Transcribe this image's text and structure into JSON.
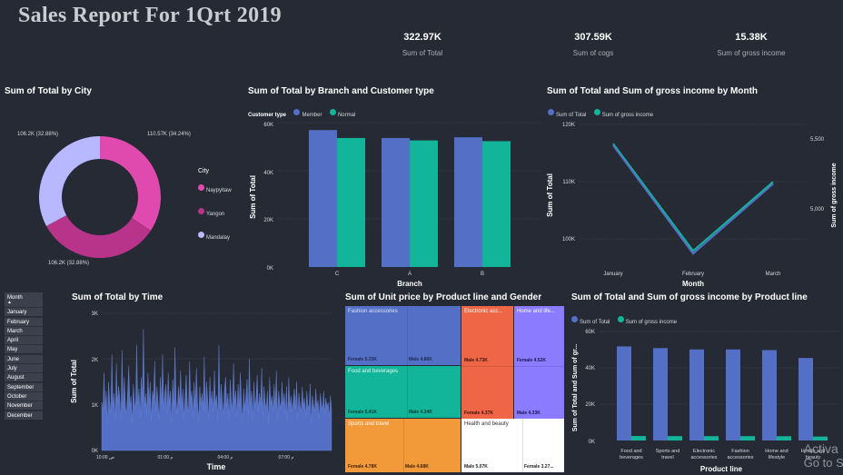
{
  "report": {
    "title": "Sales Report For 1Qrt  2019"
  },
  "kpis": [
    {
      "value": "322.97K",
      "label": "Sum of Total"
    },
    {
      "value": "307.59K",
      "label": "Sum of cogs"
    },
    {
      "value": "15.38K",
      "label": "Sum of gross income"
    }
  ],
  "colors": {
    "blue": "#5470C6",
    "teal": "#12B59A",
    "magenta": "#E04AAE",
    "plum": "#B8338A",
    "lavender": "#B7B8FF",
    "orange": "#F29A3A",
    "red": "#EE6646",
    "purple": "#8A7BFF"
  },
  "donut": {
    "title": "Sum of Total by City",
    "legend_title": "City",
    "slices": [
      {
        "name": "Naypyitaw",
        "value": 110.57,
        "label": "110.57K (34.24%)",
        "color": "#E04AAE"
      },
      {
        "name": "Yangon",
        "value": 106.2,
        "label": "106.2K (32.88%)",
        "color": "#B8338A"
      },
      {
        "name": "Mandalay",
        "value": 106.2,
        "label": "106.2K (32.88%)",
        "color": "#B7B8FF"
      }
    ]
  },
  "branch": {
    "title": "Sum of Total by Branch and Customer type",
    "legend_title": "Customer type",
    "series_names": [
      "Member",
      "Normal"
    ],
    "y_ticks": [
      "60K",
      "40K",
      "20K",
      "0K"
    ],
    "ylabel": "Sum of Total",
    "xlabel": "Branch",
    "categories": [
      "C",
      "A",
      "B"
    ]
  },
  "month": {
    "title": "Sum of Total and Sum of gross income by Month",
    "series_names": [
      "Sum of Total",
      "Sum of gross income"
    ],
    "y_ticks": [
      "120K",
      "110K",
      "100K"
    ],
    "y2_ticks": [
      "5,500",
      "5,000"
    ],
    "ylabel": "Sum of Total",
    "y2label": "Sum of gross income",
    "xlabel": "Month",
    "categories": [
      "January",
      "February",
      "March"
    ]
  },
  "slicer": {
    "header": "Month",
    "items": [
      "January",
      "February",
      "March",
      "April",
      "May",
      "June",
      "July",
      "August",
      "September",
      "October",
      "November",
      "December"
    ]
  },
  "time": {
    "title": "Sum of Total by Time",
    "y_ticks": [
      "3K",
      "2K",
      "1K",
      "0K"
    ],
    "x_ticks": [
      "10:00 ص",
      "01:00 م",
      "04:00 م",
      "07:00 م"
    ],
    "ylabel": "Sum of Total",
    "xlabel": "Time"
  },
  "treemap": {
    "title": "Sum of Unit price by Product line and Gender",
    "tiles": [
      {
        "name": "Fashion accessories",
        "female": "Female 5.33K",
        "male": "Male 4.86K",
        "color": "#5470C6"
      },
      {
        "name": "Electronic acc...",
        "female": "Male 4.73K",
        "male": "Female 4.37K",
        "color": "#EE6646"
      },
      {
        "name": "Home and life...",
        "female": "Female 4.52K",
        "male": "Male 4.33K",
        "color": "#8A7BFF"
      },
      {
        "name": "Food and beverages",
        "female": "Female 5.41K",
        "male": "Male 4.34K",
        "color": "#12B59A"
      },
      {
        "name": "Sports and travel",
        "female": "Female 4.78K",
        "male": "Male 4.68K",
        "color": "#F29A3A"
      },
      {
        "name": "Health and beauty",
        "female": "Male 5.07K",
        "male": "Female 3.27...",
        "color": "#FFFFFF"
      }
    ]
  },
  "product": {
    "title": "Sum of Total and Sum of gross income by Product line",
    "series_names": [
      "Sum of Total",
      "Sum of gross income"
    ],
    "y_ticks": [
      "60K",
      "40K",
      "20K",
      "0K"
    ],
    "ylabel": "Sum of Total and Sum of gr...",
    "xlabel": "Product line",
    "categories": [
      [
        "Food and",
        "beverages"
      ],
      [
        "Sports and",
        "travel"
      ],
      [
        "Electronic",
        "accessories"
      ],
      [
        "Fashion",
        "accessories"
      ],
      [
        "Home and",
        "lifestyle"
      ],
      [
        "Health and",
        "beauty"
      ]
    ]
  },
  "watermark": {
    "line1": "Activa",
    "line2": "Go to Se"
  },
  "chart_data": [
    {
      "type": "pie",
      "title": "Sum of Total by City",
      "categories": [
        "Naypyitaw",
        "Yangon",
        "Mandalay"
      ],
      "values": [
        110.57,
        106.2,
        106.2
      ],
      "unit": "K"
    },
    {
      "type": "bar",
      "title": "Sum of Total by Branch and Customer type",
      "categories": [
        "C",
        "A",
        "B"
      ],
      "series": [
        {
          "name": "Member",
          "values": [
            56.9,
            53.6,
            53.9
          ]
        },
        {
          "name": "Normal",
          "values": [
            53.6,
            52.6,
            52.3
          ]
        }
      ],
      "xlabel": "Branch",
      "ylabel": "Sum of Total",
      "ylim": [
        0,
        60
      ]
    },
    {
      "type": "line",
      "title": "Sum of Total and Sum of gross income by Month",
      "categories": [
        "January",
        "February",
        "March"
      ],
      "series": [
        {
          "name": "Sum of Total",
          "values": [
            116.3,
            97.2,
            109.5
          ],
          "axis": "left"
        },
        {
          "name": "Sum of gross income",
          "values": [
            5537,
            4629,
            5213
          ],
          "axis": "right"
        }
      ],
      "xlabel": "Month",
      "ylabel": "Sum of Total",
      "y2label": "Sum of gross income",
      "ylim": [
        95,
        120
      ],
      "y2lim": [
        4500,
        5700
      ]
    },
    {
      "type": "area",
      "title": "Sum of Total by Time",
      "values": [
        1050,
        850,
        1700,
        900,
        1300,
        600,
        1500,
        1100,
        800,
        2100,
        950,
        1250,
        700,
        1900,
        1000,
        1400,
        1150,
        650,
        2200,
        900,
        1600,
        1000,
        780,
        1300,
        1850,
        950,
        1200,
        600,
        1450,
        1050,
        900,
        2300,
        1000,
        1350,
        750,
        1600,
        1100,
        2650,
        950,
        1250,
        800,
        1700,
        1000,
        1500,
        650,
        1300,
        1150,
        1950,
        850,
        1400,
        1050,
        700,
        1600,
        1000,
        2100,
        900,
        1250,
        1450,
        800,
        1700,
        1000,
        1300,
        600,
        1550,
        950,
        2250,
        1100,
        800,
        1400,
        1000,
        1750,
        900,
        1350,
        700,
        1200,
        1650,
        1000,
        850,
        1950,
        1100,
        1300,
        750,
        1500,
        950,
        1800,
        1050,
        650,
        1400,
        1000,
        1250,
        900,
        2050,
        850,
        1500,
        1150,
        700,
        1600,
        1000,
        1300,
        850,
        1750,
        1000,
        1200,
        650,
        2300,
        900,
        1450,
        1050,
        800,
        1350,
        1600,
        950,
        1250,
        700,
        1550,
        1100,
        850,
        1900,
        1000,
        1300,
        750,
        1450,
        950,
        1700,
        1050,
        650,
        1350,
        900,
        1200,
        1550,
        800,
        2000,
        1000,
        1300,
        700,
        1500,
        950,
        1150,
        1650,
        850,
        1250,
        1000,
        1800,
        750,
        1400,
        1050,
        900,
        1300,
        600,
        1600,
        1000,
        1200,
        850,
        1450,
        950,
        1750,
        700,
        1300,
        1050,
        900,
        1500,
        1000,
        1250,
        800,
        1400,
        650,
        1600,
        950,
        1200,
        850,
        1100,
        1350,
        900,
        1500,
        700,
        1250,
        1000,
        850,
        1400,
        950,
        1150,
        750,
        1300,
        1000,
        900,
        1450,
        600,
        1200,
        1000,
        850,
        1350,
        950,
        1100,
        700,
        1250,
        1000,
        900,
        1300,
        800,
        1150,
        950,
        1050,
        700,
        1200,
        900
      ],
      "xlabel": "Time",
      "ylabel": "Sum of Total",
      "ylim": [
        0,
        3000
      ]
    },
    {
      "type": "bar",
      "title": "Sum of Total and Sum of gross income by Product line",
      "categories": [
        "Food and beverages",
        "Sports and travel",
        "Electronic accessories",
        "Fashion accessories",
        "Home and lifestyle",
        "Health and beauty"
      ],
      "series": [
        {
          "name": "Sum of Total",
          "values": [
            56.1,
            55.1,
            54.3,
            54.3,
            53.9,
            49.2
          ]
        },
        {
          "name": "Sum of gross income",
          "values": [
            2.67,
            2.62,
            2.59,
            2.59,
            2.56,
            2.34
          ]
        }
      ],
      "xlabel": "Product line",
      "ylabel": "Sum of Total and Sum of gr...",
      "ylim": [
        0,
        65
      ]
    }
  ]
}
